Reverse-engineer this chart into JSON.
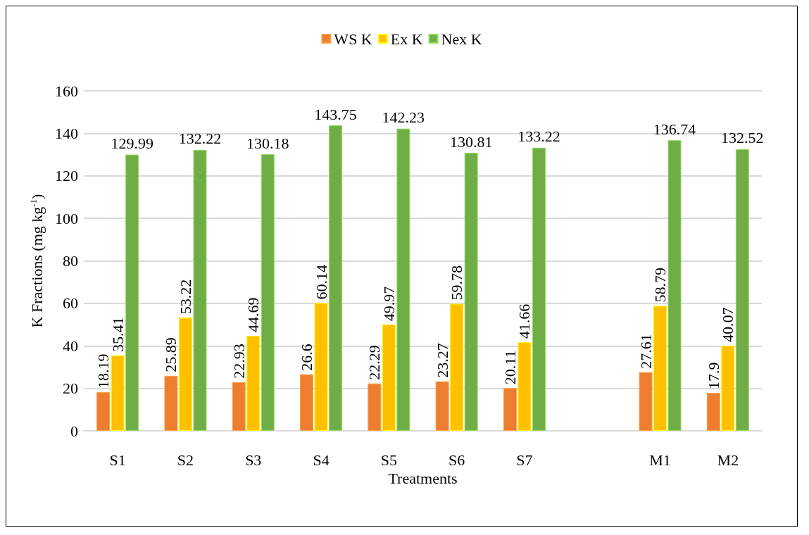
{
  "chart_data": {
    "type": "bar",
    "xlabel": "Treatments",
    "ylabel": "K Fractions (mg kg$^{-1}$)",
    "categories": [
      "S1",
      "S2",
      "S3",
      "S4",
      "S5",
      "S6",
      "S7",
      null,
      "M1",
      "M2"
    ],
    "series": [
      {
        "name": "WS K",
        "color": "#ed7d31",
        "values": [
          18.19,
          25.89,
          22.93,
          26.6,
          22.29,
          23.27,
          20.11,
          null,
          27.61,
          17.9
        ]
      },
      {
        "name": "Ex K",
        "color": "#ffc000",
        "values": [
          35.41,
          53.22,
          44.69,
          60.14,
          49.97,
          59.78,
          41.66,
          null,
          58.79,
          40.07
        ]
      },
      {
        "name": "Nex K",
        "color": "#70ad47",
        "values": [
          129.99,
          132.22,
          130.18,
          143.75,
          142.23,
          130.81,
          133.22,
          null,
          136.74,
          132.52
        ]
      }
    ],
    "ylim": [
      0,
      160
    ],
    "yticks": [
      0,
      20,
      40,
      60,
      80,
      100,
      120,
      140,
      160
    ],
    "grid": "y",
    "legend": "top",
    "data_labels": true
  }
}
